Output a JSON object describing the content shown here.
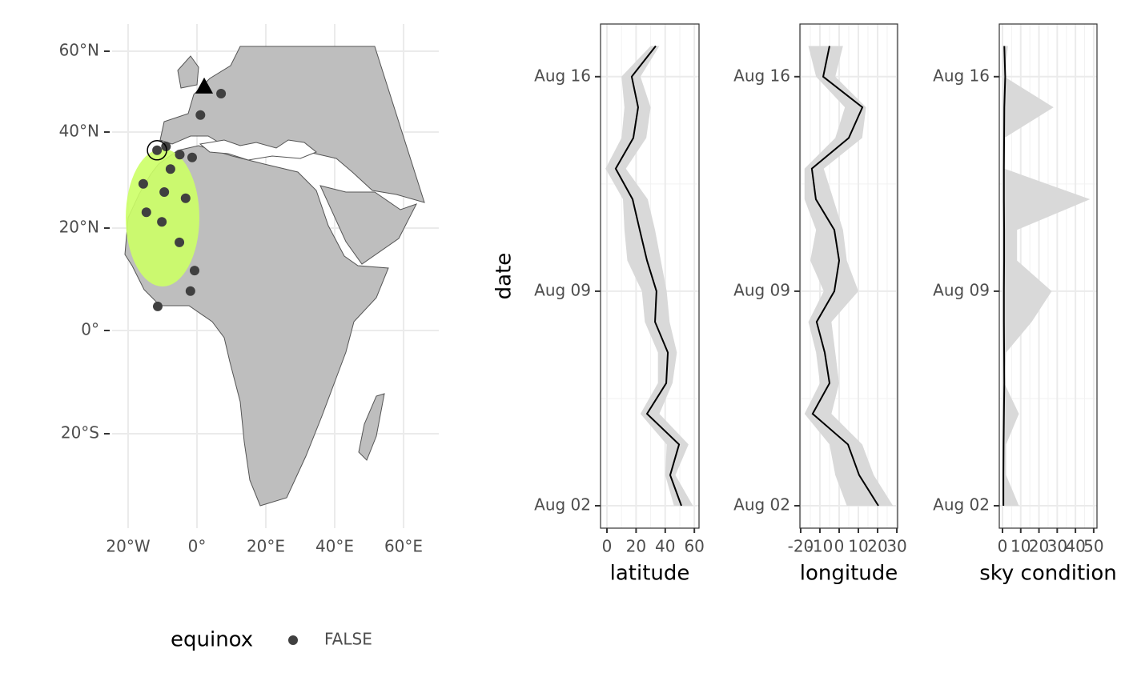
{
  "chart_data": [
    {
      "type": "map",
      "xticks": [
        {
          "value": -20,
          "label": "20°W"
        },
        {
          "value": 0,
          "label": "0°"
        },
        {
          "value": 20,
          "label": "20°E"
        },
        {
          "value": 40,
          "label": "40°E"
        },
        {
          "value": 60,
          "label": "60°E"
        }
      ],
      "yticks": [
        {
          "value": 60,
          "label": "60°N"
        },
        {
          "value": 40,
          "label": "40°N"
        },
        {
          "value": 20,
          "label": "20°N"
        },
        {
          "value": 0,
          "label": "0°"
        },
        {
          "value": -20,
          "label": "20°S"
        }
      ],
      "legend_title": "equinox",
      "series": [
        {
          "name": "FALSE",
          "color": "#404040",
          "lon": [
            7,
            1,
            -9,
            -11.6,
            -5,
            -1.4,
            -7.7,
            -15.6,
            -9.5,
            -3.3,
            -14.7,
            -10.2,
            -5.1,
            -0.7,
            -1.9,
            -11.4
          ],
          "lat": [
            49.5,
            44.2,
            37,
            36.2,
            35.3,
            34.7,
            32.3,
            29.2,
            27.5,
            26.2,
            23.3,
            21.3,
            17.2,
            11.7,
            7.7,
            4.7
          ]
        }
      ],
      "start": {
        "lon": 2.1,
        "lat": 51.3
      },
      "highlight": {
        "lon": -11.6,
        "lat": 36.2
      },
      "grid": true
    },
    {
      "type": "line",
      "xlabel": "latitude",
      "ylabel": "date",
      "dates": [
        "Aug 02",
        "Aug 03",
        "Aug 04",
        "Aug 05",
        "Aug 06",
        "Aug 07",
        "Aug 08",
        "Aug 09",
        "Aug 10",
        "Aug 11",
        "Aug 12",
        "Aug 13",
        "Aug 14",
        "Aug 15",
        "Aug 16",
        "Aug 17"
      ],
      "values": [
        51.1,
        43.4,
        49.5,
        27.5,
        40.7,
        41.8,
        33,
        34,
        27.5,
        22.5,
        17.6,
        6,
        18.1,
        21.4,
        17,
        33.5
      ],
      "lower": [
        46,
        40,
        41,
        23,
        35,
        35,
        26,
        24,
        14,
        12,
        11,
        -1,
        10,
        12,
        10,
        30
      ],
      "upper": [
        59,
        47,
        56,
        36,
        45,
        48,
        43,
        41,
        37,
        33,
        28,
        13,
        27,
        30,
        23,
        36
      ],
      "xlim": [
        -4.4,
        63.2
      ],
      "xticks": [
        0,
        20,
        40,
        60
      ],
      "yticks": [
        "Aug 02",
        "Aug 09",
        "Aug 16"
      ],
      "color": "#000000",
      "ribbon_color": "#d9d9d9",
      "grid": true
    },
    {
      "type": "line",
      "xlabel": "longitude",
      "dates": [
        "Aug 02",
        "Aug 03",
        "Aug 04",
        "Aug 05",
        "Aug 06",
        "Aug 07",
        "Aug 08",
        "Aug 09",
        "Aug 10",
        "Aug 11",
        "Aug 12",
        "Aug 13",
        "Aug 14",
        "Aug 15",
        "Aug 16",
        "Aug 17"
      ],
      "values": [
        20.4,
        10.4,
        4.6,
        -13.8,
        -5,
        -7.5,
        -11.7,
        -2.5,
        0,
        -2.5,
        -12.1,
        -14.2,
        5,
        12.1,
        -8.3,
        -5
      ],
      "lower": [
        4,
        -2,
        -5,
        -18,
        -10,
        -12,
        -16,
        -8,
        -15,
        -12,
        -18,
        -18,
        -2,
        3,
        -12,
        -16
      ],
      "upper": [
        28,
        18,
        12,
        -4,
        0,
        -2,
        -4,
        10,
        4,
        2,
        -3,
        -8,
        12,
        14,
        -2,
        2
      ],
      "xlim": [
        -20.4,
        30.4
      ],
      "xticks": [
        -20,
        -10,
        0,
        10,
        20,
        30
      ],
      "yticks": [
        "Aug 02",
        "Aug 09",
        "Aug 16"
      ],
      "color": "#000000",
      "ribbon_color": "#d9d9d9",
      "grid": true
    },
    {
      "type": "line",
      "xlabel": "sky condition",
      "dates": [
        "Aug 02",
        "Aug 03",
        "Aug 04",
        "Aug 05",
        "Aug 06",
        "Aug 07",
        "Aug 08",
        "Aug 09",
        "Aug 10",
        "Aug 11",
        "Aug 12",
        "Aug 13",
        "Aug 14",
        "Aug 15",
        "Aug 16",
        "Aug 17"
      ],
      "values": [
        0.5,
        0.5,
        0.6,
        0.8,
        1,
        0.9,
        0.8,
        0.8,
        0.9,
        0.9,
        0.8,
        0.8,
        0.9,
        1,
        1.5,
        1
      ],
      "lower": [
        0,
        0,
        0,
        0,
        0,
        0,
        0,
        0,
        0,
        0,
        0,
        0,
        0,
        0,
        0,
        0
      ],
      "upper": [
        9,
        2,
        2,
        9,
        1,
        2,
        16,
        27,
        8,
        8,
        48,
        1,
        1,
        28,
        1,
        3
      ],
      "xlim": [
        -1.75,
        51.8
      ],
      "xticks": [
        0,
        10,
        20,
        30,
        40,
        50
      ],
      "yticks": [
        "Aug 02",
        "Aug 09",
        "Aug 16"
      ],
      "color": "#000000",
      "ribbon_color": "#d9d9d9",
      "grid": true
    }
  ]
}
